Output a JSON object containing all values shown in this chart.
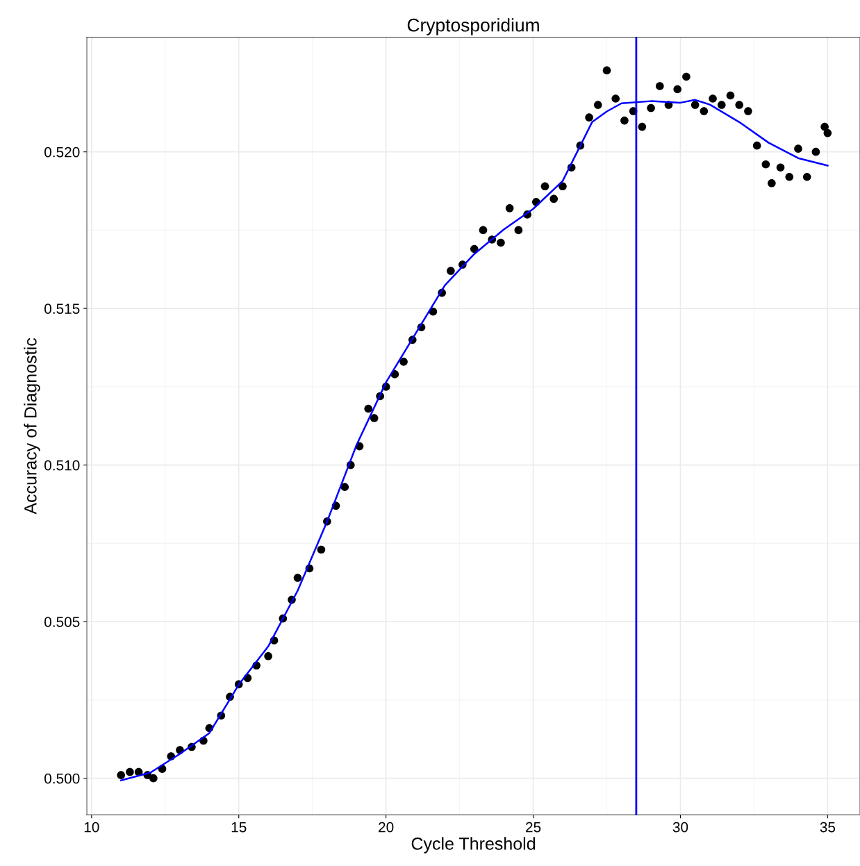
{
  "chart_data": {
    "type": "scatter",
    "title": "Cryptosporidium",
    "xlabel": "Cycle Threshold",
    "ylabel": "Accuracy of Diagnostic",
    "xlim": [
      9.84,
      36.1
    ],
    "ylim": [
      0.49883,
      0.52366
    ],
    "xticks": [
      10,
      15,
      20,
      25,
      30,
      35
    ],
    "yticks": [
      {
        "value": 0.5,
        "label": "0.500"
      },
      {
        "value": 0.505,
        "label": "0.505"
      },
      {
        "value": 0.51,
        "label": "0.510"
      },
      {
        "value": 0.515,
        "label": "0.515"
      },
      {
        "value": 0.52,
        "label": "0.520"
      }
    ],
    "grid": true,
    "ref_lines": [
      {
        "axis": "x",
        "value": 28.5,
        "color": "#0000ff",
        "line_style": "solid"
      }
    ],
    "series": [
      {
        "marker": "circle",
        "color": "#000000",
        "x": [
          11.0,
          11.3,
          11.6,
          11.9,
          12.1,
          12.4,
          12.7,
          13.0,
          13.4,
          13.8,
          14.0,
          14.4,
          14.7,
          15.0,
          15.3,
          15.6,
          16.0,
          16.2,
          16.5,
          16.8,
          17.0,
          17.4,
          17.8,
          18.0,
          18.3,
          18.6,
          18.8,
          19.1,
          19.4,
          19.6,
          19.8,
          20.0,
          20.3,
          20.6,
          20.9,
          21.2,
          21.6,
          21.9,
          22.2,
          22.6,
          23.0,
          23.3,
          23.6,
          23.9,
          24.2,
          24.5,
          24.8,
          25.1,
          25.4,
          25.7,
          26.0,
          26.3,
          26.6,
          26.9,
          27.2,
          27.5,
          27.8,
          28.1,
          28.4,
          28.7,
          29.0,
          29.3,
          29.6,
          29.9,
          30.2,
          30.5,
          30.8,
          31.1,
          31.4,
          31.7,
          32.0,
          32.3,
          32.6,
          32.9,
          33.1,
          33.4,
          33.7,
          34.0,
          34.3,
          34.6,
          34.9,
          35.0
        ],
        "values": [
          0.5001,
          0.5002,
          0.5002,
          0.5001,
          0.5,
          0.5003,
          0.5007,
          0.5009,
          0.501,
          0.5012,
          0.5016,
          0.502,
          0.5026,
          0.503,
          0.5032,
          0.5036,
          0.5039,
          0.5044,
          0.5051,
          0.5057,
          0.5064,
          0.5067,
          0.5073,
          0.5082,
          0.5087,
          0.5093,
          0.51,
          0.5106,
          0.5118,
          0.5115,
          0.5122,
          0.5125,
          0.5129,
          0.5133,
          0.514,
          0.5144,
          0.5149,
          0.5155,
          0.5162,
          0.5164,
          0.5169,
          0.5175,
          0.5172,
          0.5171,
          0.5182,
          0.5175,
          0.518,
          0.5184,
          0.5189,
          0.5185,
          0.5189,
          0.5195,
          0.5202,
          0.5211,
          0.5215,
          0.5226,
          0.5217,
          0.521,
          0.5213,
          0.5208,
          0.5214,
          0.5221,
          0.5215,
          0.522,
          0.5224,
          0.5215,
          0.5213,
          0.5217,
          0.5215,
          0.5218,
          0.5215,
          0.5213,
          0.5202,
          0.5196,
          0.519,
          0.5195,
          0.5192,
          0.5201,
          0.5192,
          0.52,
          0.5208,
          0.5206
        ]
      },
      {
        "type": "line",
        "marker": "none",
        "color": "#0000ff",
        "line_style": "solid",
        "x": [
          11,
          12,
          13,
          14,
          15,
          16,
          17,
          18,
          19,
          20,
          21,
          22,
          23,
          24,
          25,
          26,
          27,
          27.5,
          28,
          29,
          30,
          30.5,
          31,
          32,
          33,
          34,
          35
        ],
        "values": [
          0.49993,
          0.50018,
          0.50078,
          0.50144,
          0.50299,
          0.50421,
          0.50599,
          0.5082,
          0.51064,
          0.51264,
          0.51419,
          0.51574,
          0.51674,
          0.51752,
          0.51818,
          0.51907,
          0.52095,
          0.52129,
          0.52155,
          0.52162,
          0.52157,
          0.52166,
          0.52151,
          0.52095,
          0.52029,
          0.5198,
          0.51956
        ]
      }
    ]
  }
}
